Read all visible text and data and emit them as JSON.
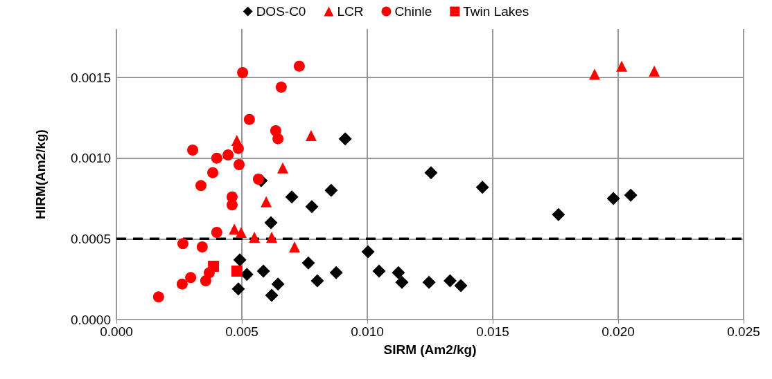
{
  "chart_data": {
    "type": "scatter",
    "xlabel": "SIRM (Am2/kg)",
    "ylabel": "HIRM(Am2/kg)",
    "xlim": [
      0,
      0.025
    ],
    "ylim": [
      0,
      0.0018
    ],
    "xticks": [
      {
        "value": 0,
        "label": "0.000"
      },
      {
        "value": 0.005,
        "label": "0.005"
      },
      {
        "value": 0.01,
        "label": "0.010"
      },
      {
        "value": 0.015,
        "label": "0.015"
      },
      {
        "value": 0.02,
        "label": "0.020"
      },
      {
        "value": 0.025,
        "label": "0.025"
      }
    ],
    "yticks": [
      {
        "value": 0,
        "label": "0.0000"
      },
      {
        "value": 0.0005,
        "label": "0.0005"
      },
      {
        "value": 0.001,
        "label": "0.0010"
      },
      {
        "value": 0.0015,
        "label": "0.0015"
      }
    ],
    "grid": true,
    "legend": "top",
    "ref_lines": [
      {
        "axis": "y",
        "value": 0.0005,
        "color": "#000000",
        "line_style": "dashed"
      }
    ],
    "series": [
      {
        "name": "DOS-C0",
        "color": "#000000",
        "marker": "diamond",
        "x": [
          0.00912,
          0.00577,
          0.00699,
          0.00779,
          0.00856,
          0.01254,
          0.01459,
          0.01762,
          0.01981,
          0.0205,
          0.00616,
          0.01003,
          0.01047,
          0.01124,
          0.01138,
          0.01246,
          0.0133,
          0.01373,
          0.00765,
          0.00876,
          0.00801,
          0.00492,
          0.0052,
          0.00586,
          0.00644,
          0.00619,
          0.00486
        ],
        "values": [
          0.00112,
          0.00086,
          0.00076,
          0.0007,
          0.0008,
          0.00091,
          0.00082,
          0.00065,
          0.00075,
          0.00077,
          0.0006,
          0.00042,
          0.0003,
          0.00029,
          0.00023,
          0.00023,
          0.00024,
          0.00021,
          0.00035,
          0.00029,
          0.00024,
          0.00037,
          0.00028,
          0.0003,
          0.00022,
          0.00015,
          0.00019
        ]
      },
      {
        "name": "LCR",
        "color": "#ff0000",
        "marker": "triangle",
        "x": [
          0.0048,
          0.00776,
          0.00663,
          0.00597,
          0.0047,
          0.00497,
          0.0055,
          0.00619,
          0.0071,
          0.01906,
          0.02014,
          0.02144
        ],
        "values": [
          0.00111,
          0.00114,
          0.00094,
          0.00073,
          0.00056,
          0.00054,
          0.00051,
          0.00051,
          0.00045,
          0.00152,
          0.00157,
          0.00154
        ]
      },
      {
        "name": "Chinle",
        "color": "#ff0000",
        "marker": "circle",
        "x": [
          0.00503,
          0.00729,
          0.00657,
          0.0053,
          0.00635,
          0.00644,
          0.00304,
          0.00486,
          0.004,
          0.00445,
          0.00489,
          0.00384,
          0.00337,
          0.00566,
          0.00461,
          0.00461,
          0.004,
          0.00265,
          0.00342,
          0.0037,
          0.00296,
          0.00356,
          0.00262,
          0.00168
        ],
        "values": [
          0.00153,
          0.00157,
          0.00144,
          0.00124,
          0.00117,
          0.00112,
          0.00105,
          0.00106,
          0.001,
          0.00102,
          0.00096,
          0.00091,
          0.00083,
          0.00087,
          0.00076,
          0.00071,
          0.00054,
          0.00047,
          0.00045,
          0.00029,
          0.00026,
          0.00024,
          0.00022,
          0.00014
        ]
      },
      {
        "name": "Twin Lakes",
        "color": "#ff0000",
        "marker": "square",
        "x": [
          0.00387,
          0.0048
        ],
        "values": [
          0.00033,
          0.0003
        ]
      }
    ]
  }
}
